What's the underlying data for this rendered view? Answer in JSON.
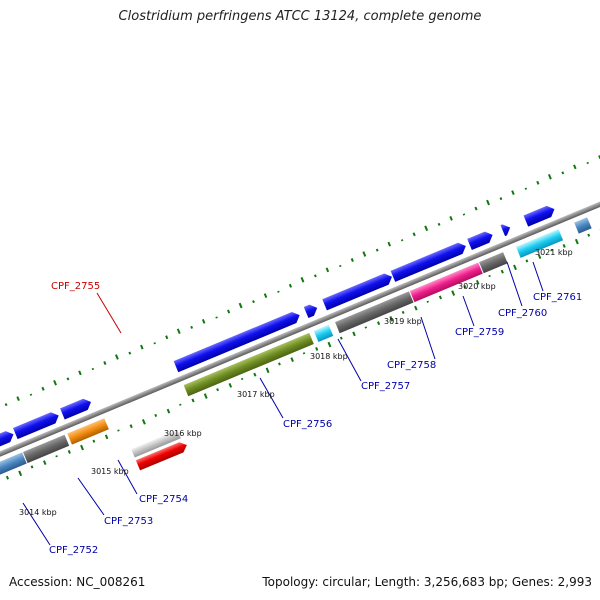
{
  "title": "Clostridium perfringens ATCC 13124, complete genome",
  "footer": {
    "accession": "Accession: NC_008261",
    "topology": "Topology: circular; Length: 3,256,683 bp; Genes: 2,993"
  },
  "ticks": [
    "3014 kbp",
    "3015 kbp",
    "3016 kbp",
    "3017 kbp",
    "3018 kbp",
    "3019 kbp",
    "3020 kbp",
    "3021 kbp"
  ],
  "genes": [
    "CPF_2752",
    "CPF_2753",
    "CPF_2754",
    "CPF_2755",
    "CPF_2756",
    "CPF_2757",
    "CPF_2758",
    "CPF_2759",
    "CPF_2760",
    "CPF_2761"
  ],
  "colors": {
    "highlight_label": "#cc0000",
    "label": "#0000aa",
    "cds": "#0000dd",
    "backbone": "#888888",
    "tick_green": "#117711"
  }
}
